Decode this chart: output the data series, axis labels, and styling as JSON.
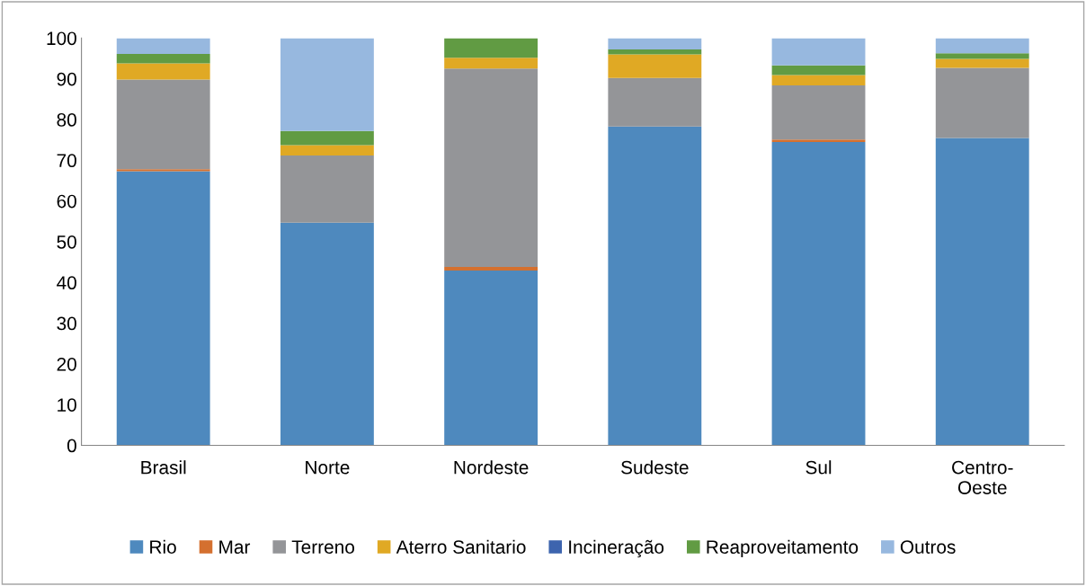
{
  "chart_data": {
    "type": "bar",
    "stacked": true,
    "categories": [
      "Brasil",
      "Norte",
      "Nordeste",
      "Sudeste",
      "Sul",
      "Centro-\nOeste"
    ],
    "series": [
      {
        "name": "Rio",
        "color": "#4e89be",
        "values": [
          67.3,
          54.7,
          42.9,
          78.3,
          74.5,
          75.5
        ]
      },
      {
        "name": "Mar",
        "color": "#d4702f",
        "values": [
          0.5,
          0,
          0.9,
          0,
          0.6,
          0
        ]
      },
      {
        "name": "Terreno",
        "color": "#949598",
        "values": [
          22.0,
          16.5,
          48.7,
          11.9,
          13.3,
          17.2
        ]
      },
      {
        "name": "Aterro Sanitario",
        "color": "#e0a924",
        "values": [
          4.0,
          2.5,
          2.7,
          5.8,
          2.5,
          2.2
        ]
      },
      {
        "name": "Incineração",
        "color": "#3d64ae",
        "values": [
          0,
          0,
          0,
          0,
          0,
          0
        ]
      },
      {
        "name": "Reaproveitamento",
        "color": "#619b43",
        "values": [
          2.3,
          3.5,
          4.8,
          1.2,
          2.4,
          1.4
        ]
      },
      {
        "name": "Outros",
        "color": "#97b8df",
        "values": [
          3.9,
          22.8,
          0,
          2.8,
          6.7,
          3.7
        ]
      }
    ],
    "ylim": [
      0,
      100
    ],
    "yticks": [
      0,
      10,
      20,
      30,
      40,
      50,
      60,
      70,
      80,
      90,
      100
    ],
    "grid": false,
    "legend": "bottom"
  }
}
